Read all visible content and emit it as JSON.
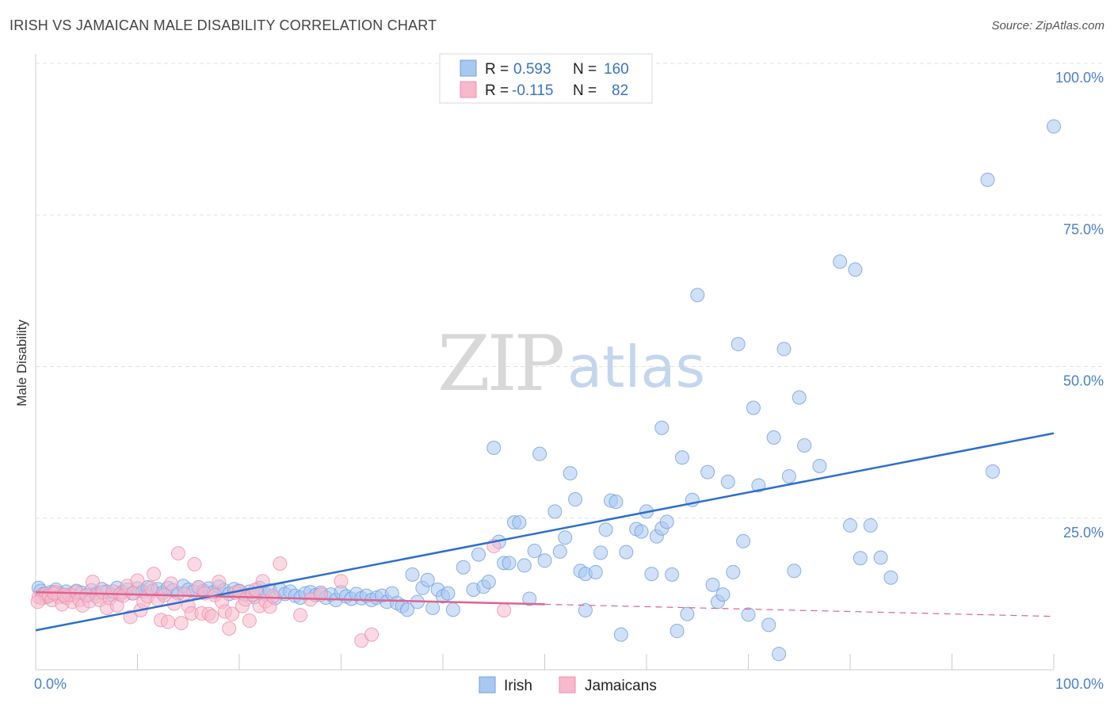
{
  "header": {
    "title": "IRISH VS JAMAICAN MALE DISABILITY CORRELATION CHART",
    "source": "Source: ZipAtlas.com"
  },
  "watermark": {
    "zip": "ZIP",
    "atlas": "atlas"
  },
  "legend": {
    "rows": [
      {
        "r_label": "R =",
        "r_value": "0.593",
        "n_label": "N =",
        "n_value": "160",
        "color": "#a9c8f0"
      },
      {
        "r_label": "R =",
        "r_value": "-0.115",
        "n_label": "N =",
        "n_value": "82",
        "color": "#f7b9cc"
      }
    ]
  },
  "bottom_legend": [
    "Irish",
    "Jamaicans"
  ],
  "chart_data": {
    "type": "scatter",
    "title": "IRISH VS JAMAICAN MALE DISABILITY CORRELATION CHART",
    "xlabel": "",
    "ylabel": "Male Disability",
    "xlim": [
      0,
      100
    ],
    "ylim": [
      0,
      100
    ],
    "x_tick_labels": [
      "0.0%",
      "100.0%"
    ],
    "y_tick_labels": [
      "100.0%",
      "75.0%",
      "50.0%",
      "25.0%"
    ],
    "y_ticks": [
      100,
      75,
      50,
      25
    ],
    "grid": true,
    "legend_position": "top-center",
    "series": [
      {
        "name": "Irish",
        "color": "#6f9fe0",
        "fill": "#a9c8f0",
        "trend": {
          "x": [
            0,
            100
          ],
          "y": [
            6.5,
            39
          ]
        },
        "points": [
          [
            0.3,
            13.5
          ],
          [
            0.5,
            13
          ],
          [
            0.8,
            12.5
          ],
          [
            1,
            12
          ],
          [
            1.5,
            12.8
          ],
          [
            2,
            13.2
          ],
          [
            2.5,
            12.5
          ],
          [
            3,
            12.9
          ],
          [
            3.5,
            12.3
          ],
          [
            4,
            13
          ],
          [
            4.5,
            12.7
          ],
          [
            5,
            12.2
          ],
          [
            5.5,
            13.1
          ],
          [
            6,
            12.6
          ],
          [
            6.5,
            13.3
          ],
          [
            7,
            12.9
          ],
          [
            7.5,
            12.4
          ],
          [
            8,
            13.5
          ],
          [
            8.5,
            12.8
          ],
          [
            9,
            13.2
          ],
          [
            9.5,
            12.6
          ],
          [
            10,
            13.4
          ],
          [
            10.5,
            12.9
          ],
          [
            11,
            13.6
          ],
          [
            11.5,
            13
          ],
          [
            12,
            13.3
          ],
          [
            12.5,
            12.7
          ],
          [
            13,
            13.5
          ],
          [
            13.5,
            13.1
          ],
          [
            14,
            12.6
          ],
          [
            14.5,
            13.8
          ],
          [
            15,
            13.2
          ],
          [
            15.5,
            12.9
          ],
          [
            16,
            13.6
          ],
          [
            16.5,
            13
          ],
          [
            17,
            13.4
          ],
          [
            17.5,
            12.8
          ],
          [
            18,
            13.7
          ],
          [
            18.5,
            13.1
          ],
          [
            19,
            12.5
          ],
          [
            19.5,
            13.3
          ],
          [
            20,
            13
          ],
          [
            20.5,
            12.4
          ],
          [
            21,
            12.9
          ],
          [
            21.5,
            12
          ],
          [
            22,
            13.5
          ],
          [
            22.5,
            12.6
          ],
          [
            23,
            13.1
          ],
          [
            23.5,
            11.8
          ],
          [
            24,
            13.2
          ],
          [
            24.5,
            12.5
          ],
          [
            25,
            12.9
          ],
          [
            25.5,
            12.2
          ],
          [
            26,
            11.9
          ],
          [
            26.5,
            12.6
          ],
          [
            27,
            12.8
          ],
          [
            27.5,
            12.3
          ],
          [
            28,
            12.7
          ],
          [
            28.5,
            11.9
          ],
          [
            29,
            12.4
          ],
          [
            29.5,
            11.5
          ],
          [
            30,
            12.8
          ],
          [
            30.5,
            12.1
          ],
          [
            31,
            11.7
          ],
          [
            31.5,
            12.5
          ],
          [
            32,
            11.8
          ],
          [
            32.5,
            12.2
          ],
          [
            33,
            11.5
          ],
          [
            33.5,
            11.9
          ],
          [
            34,
            12.2
          ],
          [
            34.5,
            11.2
          ],
          [
            35,
            12.6
          ],
          [
            35.5,
            11
          ],
          [
            36,
            10.5
          ],
          [
            36.5,
            9.9
          ],
          [
            37,
            15.7
          ],
          [
            37.5,
            11.2
          ],
          [
            38,
            13.5
          ],
          [
            38.5,
            14.8
          ],
          [
            39,
            10.2
          ],
          [
            39.5,
            13.2
          ],
          [
            40,
            12.1
          ],
          [
            40.5,
            12.6
          ],
          [
            41,
            9.9
          ],
          [
            42,
            16.9
          ],
          [
            43,
            13.2
          ],
          [
            43.5,
            19
          ],
          [
            44,
            13.7
          ],
          [
            44.5,
            14.5
          ],
          [
            45,
            36.6
          ],
          [
            45.5,
            21.1
          ],
          [
            46,
            17.6
          ],
          [
            46.5,
            17.6
          ],
          [
            47,
            24.3
          ],
          [
            47.5,
            24.3
          ],
          [
            48,
            17.2
          ],
          [
            48.5,
            11.7
          ],
          [
            49,
            19.6
          ],
          [
            49.5,
            35.6
          ],
          [
            50,
            18
          ],
          [
            51,
            26.1
          ],
          [
            51.5,
            19.5
          ],
          [
            52,
            21.8
          ],
          [
            52.5,
            32.4
          ],
          [
            53,
            28.1
          ],
          [
            53.5,
            16.3
          ],
          [
            54,
            15.8
          ],
          [
            54,
            9.8
          ],
          [
            55,
            16.1
          ],
          [
            55.5,
            19.3
          ],
          [
            56,
            23.1
          ],
          [
            56.5,
            27.9
          ],
          [
            57,
            27.7
          ],
          [
            57.5,
            5.8
          ],
          [
            58,
            19.4
          ],
          [
            59,
            23.2
          ],
          [
            59.5,
            22.8
          ],
          [
            60,
            26.1
          ],
          [
            60.5,
            15.8
          ],
          [
            61,
            22
          ],
          [
            61.5,
            23.3
          ],
          [
            62,
            24.4
          ],
          [
            61.5,
            39.9
          ],
          [
            62.5,
            15.7
          ],
          [
            63,
            6.4
          ],
          [
            63.5,
            35
          ],
          [
            64,
            9.2
          ],
          [
            64.5,
            28
          ],
          [
            65,
            61.8
          ],
          [
            66,
            32.6
          ],
          [
            66.5,
            14
          ],
          [
            67,
            11.2
          ],
          [
            67.5,
            12.4
          ],
          [
            68,
            31
          ],
          [
            68.5,
            16.1
          ],
          [
            69,
            53.7
          ],
          [
            69.5,
            21.2
          ],
          [
            70,
            9.1
          ],
          [
            70.5,
            43.2
          ],
          [
            71,
            30.4
          ],
          [
            72,
            7.4
          ],
          [
            72.5,
            38.3
          ],
          [
            73,
            2.6
          ],
          [
            73.5,
            52.9
          ],
          [
            74,
            31.9
          ],
          [
            74.5,
            16.3
          ],
          [
            75,
            44.9
          ],
          [
            75.5,
            37
          ],
          [
            77,
            33.6
          ],
          [
            79,
            67.3
          ],
          [
            80,
            23.8
          ],
          [
            80.5,
            66
          ],
          [
            81,
            18.4
          ],
          [
            82,
            23.8
          ],
          [
            83,
            18.5
          ],
          [
            84,
            15.2
          ],
          [
            93.5,
            80.8
          ],
          [
            94,
            32.7
          ],
          [
            100,
            89.6
          ],
          [
            1.2,
            12.1
          ]
        ]
      },
      {
        "name": "Jamaicans",
        "color": "#ee8fae",
        "fill": "#f7b9cc",
        "trend": {
          "x": [
            0,
            100
          ],
          "y": [
            12.8,
            8.8
          ]
        },
        "trend_solid_until": 50,
        "points": [
          [
            0.3,
            12
          ],
          [
            0.6,
            11.8
          ],
          [
            1,
            12.5
          ],
          [
            1.3,
            12.2
          ],
          [
            1.6,
            11.5
          ],
          [
            2,
            12.8
          ],
          [
            2.3,
            12
          ],
          [
            2.6,
            10.8
          ],
          [
            3,
            11.9
          ],
          [
            3.3,
            12.4
          ],
          [
            3.6,
            11.2
          ],
          [
            4,
            12.8
          ],
          [
            4.3,
            11.5
          ],
          [
            4.6,
            10.6
          ],
          [
            5,
            12.3
          ],
          [
            5.3,
            11.3
          ],
          [
            5.6,
            14.5
          ],
          [
            6,
            12.1
          ],
          [
            6.3,
            11.5
          ],
          [
            6.6,
            12.8
          ],
          [
            7,
            10.2
          ],
          [
            7.3,
            11.8
          ],
          [
            7.6,
            12.9
          ],
          [
            8,
            10.6
          ],
          [
            8.3,
            12.4
          ],
          [
            8.6,
            12.2
          ],
          [
            9,
            13.8
          ],
          [
            9.3,
            8.7
          ],
          [
            9.6,
            12.6
          ],
          [
            10,
            14.7
          ],
          [
            10.3,
            9.8
          ],
          [
            10.6,
            11.2
          ],
          [
            11,
            12.1
          ],
          [
            11.3,
            13.5
          ],
          [
            11.6,
            15.8
          ],
          [
            12,
            11.6
          ],
          [
            12.3,
            8.2
          ],
          [
            12.6,
            12.3
          ],
          [
            13,
            7.9
          ],
          [
            13.3,
            14.2
          ],
          [
            13.6,
            10.9
          ],
          [
            14,
            19.2
          ],
          [
            14.3,
            7.7
          ],
          [
            14.6,
            12.5
          ],
          [
            15,
            10.5
          ],
          [
            15.3,
            9.3
          ],
          [
            15.6,
            17.4
          ],
          [
            16,
            13.6
          ],
          [
            16.3,
            9.3
          ],
          [
            16.6,
            12.6
          ],
          [
            17,
            9.2
          ],
          [
            17.3,
            8.8
          ],
          [
            17.6,
            12.3
          ],
          [
            18,
            14.5
          ],
          [
            18.3,
            11.2
          ],
          [
            18.6,
            9.6
          ],
          [
            19,
            6.8
          ],
          [
            19.3,
            9.2
          ],
          [
            19.6,
            12.7
          ],
          [
            20,
            12.9
          ],
          [
            20.3,
            10.5
          ],
          [
            20.6,
            11.6
          ],
          [
            21,
            8.1
          ],
          [
            21.3,
            12.4
          ],
          [
            21.6,
            13.2
          ],
          [
            22,
            10.5
          ],
          [
            22.3,
            14.6
          ],
          [
            22.6,
            11.3
          ],
          [
            23,
            10.4
          ],
          [
            23.3,
            12.1
          ],
          [
            24,
            17.5
          ],
          [
            26,
            9
          ],
          [
            27,
            11.6
          ],
          [
            28,
            12.4
          ],
          [
            30,
            14.6
          ],
          [
            32,
            4.8
          ],
          [
            33,
            5.8
          ],
          [
            45,
            20.4
          ],
          [
            46,
            9.8
          ],
          [
            0.2,
            11.2
          ],
          [
            1.8,
            12.6
          ],
          [
            2.8,
            12.3
          ]
        ]
      }
    ]
  }
}
